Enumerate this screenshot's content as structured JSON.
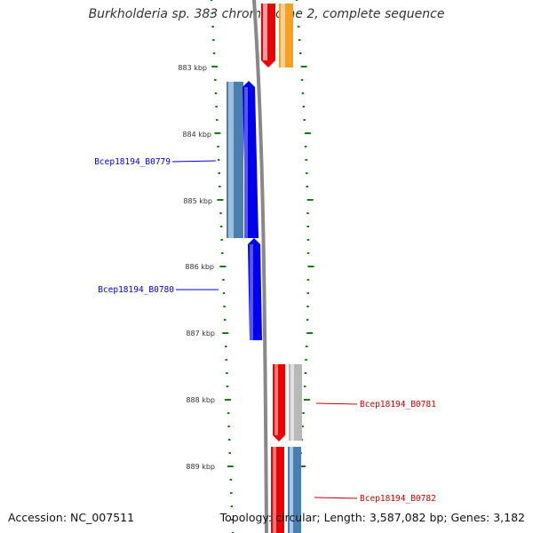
{
  "title": "Burkholderia sp. 383 chromosome 2, complete sequence",
  "footer": {
    "accession": "Accession: NC_007511",
    "topology": "Topology: circular; Length: 3,587,082 bp; Genes: 3,182"
  },
  "scale_labels": [
    "883 kbp",
    "884 kbp",
    "885 kbp",
    "886 kbp",
    "887 kbp",
    "888 kbp",
    "889 kbp"
  ],
  "gene_labels": {
    "b0779": "Bcep18194_B0779",
    "b0780": "Bcep18194_B0780",
    "b0781": "Bcep18194_B0781",
    "b0782": "Bcep18194_B0782"
  },
  "colors": {
    "tick": "#1a7a1a",
    "backbone": "#888888",
    "forward_cds": "#0000ee",
    "forward_cds_light": "#4a80b0",
    "reverse_cds": "#ee0000",
    "reverse_cds_light": "#ff9999",
    "orange": "#f5a020",
    "grey": "#b8b8b8",
    "steel": "#4a7fb0",
    "label_blue": "#0000cc",
    "label_red": "#cc0000"
  }
}
